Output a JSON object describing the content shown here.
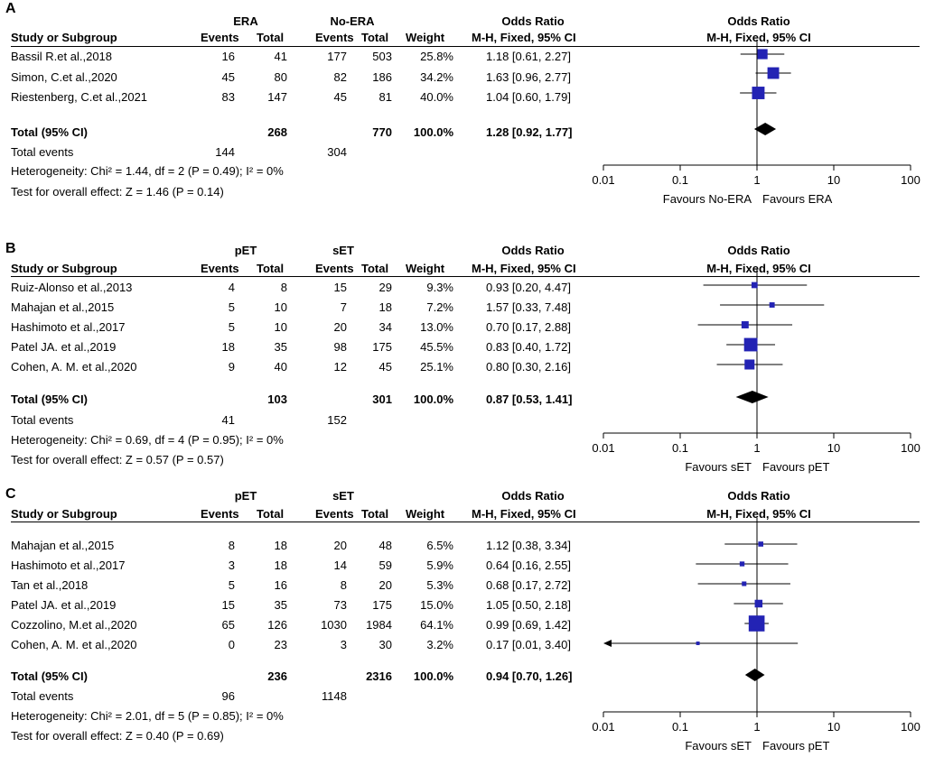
{
  "chart_data": [
    {
      "type": "forest",
      "panel": "A",
      "group_labels": [
        "ERA",
        "No-ERA"
      ],
      "headers": {
        "study": "Study or Subgroup",
        "events": "Events",
        "total": "Total",
        "weight": "Weight",
        "or_title": "Odds Ratio",
        "or_method": "M-H, Fixed, 95% CI"
      },
      "studies": [
        {
          "name": "Bassil R.et al.,2018",
          "e1": "16",
          "t1": "41",
          "e2": "177",
          "t2": "503",
          "weight": "25.8%",
          "ci_text": "1.18 [0.61, 2.27]",
          "or": 1.18,
          "lo": 0.61,
          "hi": 2.27
        },
        {
          "name": "Simon, C.et al.,2020",
          "e1": "45",
          "t1": "80",
          "e2": "82",
          "t2": "186",
          "weight": "34.2%",
          "ci_text": "1.63 [0.96, 2.77]",
          "or": 1.63,
          "lo": 0.96,
          "hi": 2.77
        },
        {
          "name": "Riestenberg, C.et al.,2021",
          "e1": "83",
          "t1": "147",
          "e2": "45",
          "t2": "81",
          "weight": "40.0%",
          "ci_text": "1.04 [0.60, 1.79]",
          "or": 1.04,
          "lo": 0.6,
          "hi": 1.79
        }
      ],
      "total": {
        "label": "Total (95% CI)",
        "t1": "268",
        "t2": "770",
        "weight": "100.0%",
        "ci_text": "1.28 [0.92, 1.77]",
        "or": 1.28,
        "lo": 0.92,
        "hi": 1.77
      },
      "total_events": {
        "label": "Total events",
        "e1": "144",
        "e2": "304"
      },
      "heterogeneity": "Heterogeneity: Chi² = 1.44, df = 2 (P = 0.49); I² = 0%",
      "overall_effect": "Test for overall effect: Z = 1.46 (P = 0.14)",
      "axis": {
        "ticks": [
          0.01,
          0.1,
          1,
          10,
          100
        ],
        "tick_labels": [
          "0.01",
          "0.1",
          "1",
          "10",
          "100"
        ],
        "xlim": [
          0.01,
          100
        ],
        "scale": "log"
      },
      "favours_left": "Favours No-ERA",
      "favours_right": "Favours ERA"
    },
    {
      "type": "forest",
      "panel": "B",
      "group_labels": [
        "pET",
        "sET"
      ],
      "headers": {
        "study": "Study or Subgroup",
        "events": "Events",
        "total": "Total",
        "weight": "Weight",
        "or_title": "Odds Ratio",
        "or_method": "M-H, Fixed, 95% CI"
      },
      "studies": [
        {
          "name": "Ruiz-Alonso et al.,2013",
          "e1": "4",
          "t1": "8",
          "e2": "15",
          "t2": "29",
          "weight": "9.3%",
          "ci_text": "0.93 [0.20, 4.47]",
          "or": 0.93,
          "lo": 0.2,
          "hi": 4.47
        },
        {
          "name": "Mahajan et al.,2015",
          "e1": "5",
          "t1": "10",
          "e2": "7",
          "t2": "18",
          "weight": "7.2%",
          "ci_text": "1.57 [0.33, 7.48]",
          "or": 1.57,
          "lo": 0.33,
          "hi": 7.48
        },
        {
          "name": "Hashimoto et al.,2017",
          "e1": "5",
          "t1": "10",
          "e2": "20",
          "t2": "34",
          "weight": "13.0%",
          "ci_text": "0.70 [0.17, 2.88]",
          "or": 0.7,
          "lo": 0.17,
          "hi": 2.88
        },
        {
          "name": "Patel JA. et al.,2019",
          "e1": "18",
          "t1": "35",
          "e2": "98",
          "t2": "175",
          "weight": "45.5%",
          "ci_text": "0.83 [0.40, 1.72]",
          "or": 0.83,
          "lo": 0.4,
          "hi": 1.72
        },
        {
          "name": "Cohen, A. M. et al.,2020",
          "e1": "9",
          "t1": "40",
          "e2": "12",
          "t2": "45",
          "weight": "25.1%",
          "ci_text": "0.80 [0.30, 2.16]",
          "or": 0.8,
          "lo": 0.3,
          "hi": 2.16
        }
      ],
      "total": {
        "label": "Total (95% CI)",
        "t1": "103",
        "t2": "301",
        "weight": "100.0%",
        "ci_text": "0.87 [0.53, 1.41]",
        "or": 0.87,
        "lo": 0.53,
        "hi": 1.41
      },
      "total_events": {
        "label": "Total events",
        "e1": "41",
        "e2": "152"
      },
      "heterogeneity": "Heterogeneity: Chi² = 0.69, df = 4 (P = 0.95); I² = 0%",
      "overall_effect": "Test for overall effect: Z = 0.57 (P = 0.57)",
      "axis": {
        "ticks": [
          0.01,
          0.1,
          1,
          10,
          100
        ],
        "tick_labels": [
          "0.01",
          "0.1",
          "1",
          "10",
          "100"
        ],
        "xlim": [
          0.01,
          100
        ],
        "scale": "log"
      },
      "favours_left": "Favours sET",
      "favours_right": "Favours pET"
    },
    {
      "type": "forest",
      "panel": "C",
      "group_labels": [
        "pET",
        "sET"
      ],
      "headers": {
        "study": "Study or Subgroup",
        "events": "Events",
        "total": "Total",
        "weight": "Weight",
        "or_title": "Odds Ratio",
        "or_method": "M-H, Fixed, 95% CI"
      },
      "studies": [
        {
          "name": "Mahajan et al.,2015",
          "e1": "8",
          "t1": "18",
          "e2": "20",
          "t2": "48",
          "weight": "6.5%",
          "ci_text": "1.12 [0.38, 3.34]",
          "or": 1.12,
          "lo": 0.38,
          "hi": 3.34
        },
        {
          "name": "Hashimoto et al.,2017",
          "e1": "3",
          "t1": "18",
          "e2": "14",
          "t2": "59",
          "weight": "5.9%",
          "ci_text": "0.64 [0.16, 2.55]",
          "or": 0.64,
          "lo": 0.16,
          "hi": 2.55
        },
        {
          "name": "Tan et al.,2018",
          "e1": "5",
          "t1": "16",
          "e2": "8",
          "t2": "20",
          "weight": "5.3%",
          "ci_text": "0.68 [0.17, 2.72]",
          "or": 0.68,
          "lo": 0.17,
          "hi": 2.72
        },
        {
          "name": "Patel JA. et al.,2019",
          "e1": "15",
          "t1": "35",
          "e2": "73",
          "t2": "175",
          "weight": "15.0%",
          "ci_text": "1.05 [0.50, 2.18]",
          "or": 1.05,
          "lo": 0.5,
          "hi": 2.18
        },
        {
          "name": "Cozzolino, M.et al.,2020",
          "e1": "65",
          "t1": "126",
          "e2": "1030",
          "t2": "1984",
          "weight": "64.1%",
          "ci_text": "0.99 [0.69, 1.42]",
          "or": 0.99,
          "lo": 0.69,
          "hi": 1.42
        },
        {
          "name": "Cohen, A. M. et al.,2020",
          "e1": "0",
          "t1": "23",
          "e2": "3",
          "t2": "30",
          "weight": "3.2%",
          "ci_text": "0.17 [0.01, 3.40]",
          "or": 0.17,
          "lo": 0.01,
          "hi": 3.4
        }
      ],
      "total": {
        "label": "Total (95% CI)",
        "t1": "236",
        "t2": "2316",
        "weight": "100.0%",
        "ci_text": "0.94 [0.70, 1.26]",
        "or": 0.94,
        "lo": 0.7,
        "hi": 1.26
      },
      "total_events": {
        "label": "Total events",
        "e1": "96",
        "e2": "1148"
      },
      "heterogeneity": "Heterogeneity: Chi² = 2.01, df = 5 (P = 0.85); I² = 0%",
      "overall_effect": "Test for overall effect: Z = 0.40 (P = 0.69)",
      "axis": {
        "ticks": [
          0.01,
          0.1,
          1,
          10,
          100
        ],
        "tick_labels": [
          "0.01",
          "0.1",
          "1",
          "10",
          "100"
        ],
        "xlim": [
          0.01,
          100
        ],
        "scale": "log"
      },
      "favours_left": "Favours sET",
      "favours_right": "Favours pET"
    }
  ],
  "colors": {
    "marker": "#2323b4",
    "line": "#000000",
    "diamond": "#000000"
  }
}
